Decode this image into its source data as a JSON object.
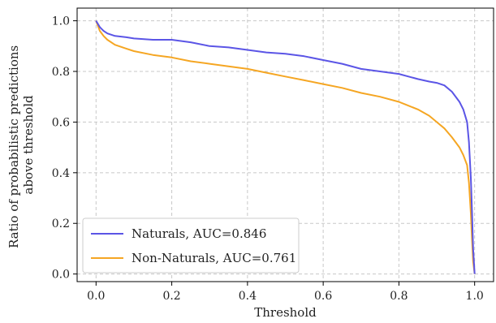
{
  "chart_data": {
    "type": "line",
    "xlabel": "Threshold",
    "ylabel": "Ratio of probabilistic predictions above threshold",
    "ylabel_lines": [
      "Ratio of probabilistic predictions",
      "above threshold"
    ],
    "xlim": [
      -0.05,
      1.05
    ],
    "ylim": [
      -0.03,
      1.05
    ],
    "x_ticks": [
      "0.0",
      "0.2",
      "0.4",
      "0.6",
      "0.8",
      "1.0"
    ],
    "y_ticks": [
      "0.0",
      "0.2",
      "0.4",
      "0.6",
      "0.8",
      "1.0"
    ],
    "grid": true,
    "legend_position": "lower-left",
    "series": [
      {
        "name": "Naturals, AUC=0.846",
        "color": "#5b55e6",
        "x": [
          0.0,
          0.01,
          0.02,
          0.03,
          0.05,
          0.08,
          0.1,
          0.15,
          0.2,
          0.25,
          0.3,
          0.35,
          0.4,
          0.45,
          0.5,
          0.55,
          0.6,
          0.65,
          0.7,
          0.75,
          0.8,
          0.85,
          0.88,
          0.9,
          0.92,
          0.94,
          0.96,
          0.97,
          0.98,
          0.985,
          0.99,
          0.993,
          0.996,
          1.0
        ],
        "y": [
          1.0,
          0.975,
          0.96,
          0.95,
          0.94,
          0.935,
          0.93,
          0.925,
          0.925,
          0.915,
          0.9,
          0.895,
          0.885,
          0.875,
          0.87,
          0.86,
          0.845,
          0.83,
          0.81,
          0.8,
          0.79,
          0.77,
          0.76,
          0.755,
          0.745,
          0.72,
          0.68,
          0.65,
          0.6,
          0.52,
          0.38,
          0.25,
          0.1,
          0.0
        ]
      },
      {
        "name": "Non-Naturals, AUC=0.761",
        "color": "#f5a623",
        "x": [
          0.0,
          0.01,
          0.02,
          0.03,
          0.05,
          0.08,
          0.1,
          0.15,
          0.2,
          0.25,
          0.3,
          0.35,
          0.4,
          0.45,
          0.5,
          0.55,
          0.6,
          0.65,
          0.7,
          0.75,
          0.8,
          0.85,
          0.88,
          0.9,
          0.92,
          0.94,
          0.96,
          0.97,
          0.98,
          0.985,
          0.99,
          0.993,
          0.996,
          1.0
        ],
        "y": [
          1.0,
          0.96,
          0.94,
          0.925,
          0.905,
          0.89,
          0.88,
          0.865,
          0.855,
          0.84,
          0.83,
          0.82,
          0.81,
          0.795,
          0.78,
          0.765,
          0.75,
          0.735,
          0.715,
          0.7,
          0.68,
          0.65,
          0.625,
          0.6,
          0.575,
          0.54,
          0.5,
          0.47,
          0.43,
          0.36,
          0.24,
          0.14,
          0.05,
          0.0
        ]
      }
    ]
  }
}
